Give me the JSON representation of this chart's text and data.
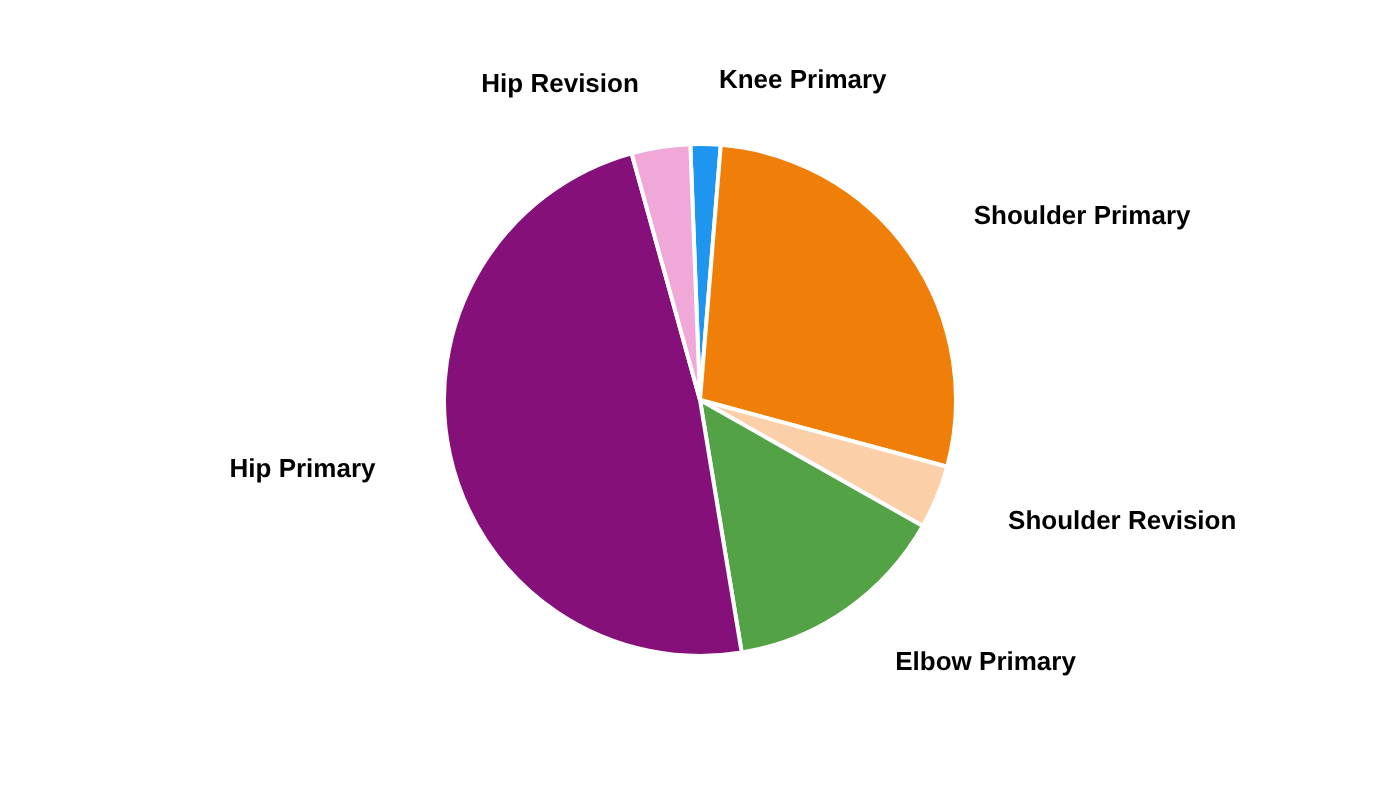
{
  "chart_data": {
    "type": "pie",
    "categories": [
      "Knee Primary",
      "Shoulder Primary",
      "Shoulder Revision",
      "Elbow Primary",
      "Hip Primary",
      "Hip Revision"
    ],
    "values": [
      1.9,
      27.9,
      4.0,
      14.2,
      48.3,
      3.7
    ],
    "colors": [
      "#1e96f0",
      "#f07f09",
      "#fbd0a8",
      "#54a246",
      "#861079",
      "#f0a8d8"
    ],
    "legend": false
  }
}
